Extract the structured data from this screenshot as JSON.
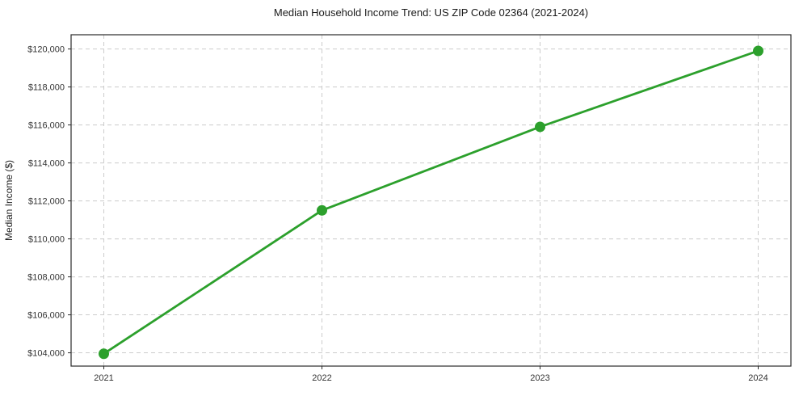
{
  "title": "Median Household Income Trend: US ZIP Code 02364 (2021-2024)",
  "chart_data": {
    "type": "line",
    "categories": [
      "2021",
      "2022",
      "2023",
      "2024"
    ],
    "series": [
      {
        "name": "Median Household Income",
        "values": [
          103950,
          111500,
          115900,
          119900
        ],
        "color": "#2ca02c",
        "marker": "circle",
        "marker_radius": 6.5,
        "line_width": 2.8
      }
    ],
    "xlabel": "",
    "ylabel": "Median Income ($)",
    "ylim": [
      103300,
      120750
    ],
    "yticks": [
      104000,
      106000,
      108000,
      110000,
      112000,
      114000,
      116000,
      118000,
      120000
    ],
    "ytick_prefix": "$",
    "grid": true,
    "grid_style": "dashed",
    "grid_color": "#cccccc",
    "spine_color": "#2b2b2b",
    "legend_position": "none"
  }
}
